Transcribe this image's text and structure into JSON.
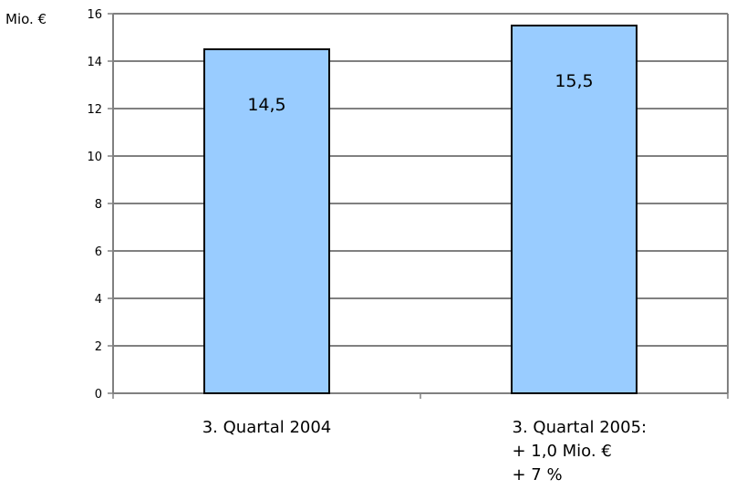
{
  "chart_data": {
    "type": "bar",
    "title": "",
    "xlabel": "",
    "ylabel": "",
    "y_unit_label": "Mio. €",
    "categories": [
      "3. Quartal 2004",
      "3. Quartal 2005:"
    ],
    "category_sublabels": [
      [],
      [
        "+ 1,0 Mio. €",
        "+ 7 %"
      ]
    ],
    "values": [
      14.5,
      15.5
    ],
    "data_labels": [
      "14,5",
      "15,5"
    ],
    "ylim": [
      0,
      16
    ],
    "yticks": [
      0,
      2,
      4,
      6,
      8,
      10,
      12,
      14,
      16
    ],
    "ytick_labels": [
      "0",
      "2",
      "4",
      "6",
      "8",
      "10",
      "12",
      "14",
      "16"
    ],
    "grid": "horizontal",
    "legend": "none",
    "colors": {
      "bar_fill": "#99ccff",
      "bar_stroke": "#000000",
      "grid": "#000000",
      "frame": "#808080",
      "axis": "#808080"
    }
  }
}
